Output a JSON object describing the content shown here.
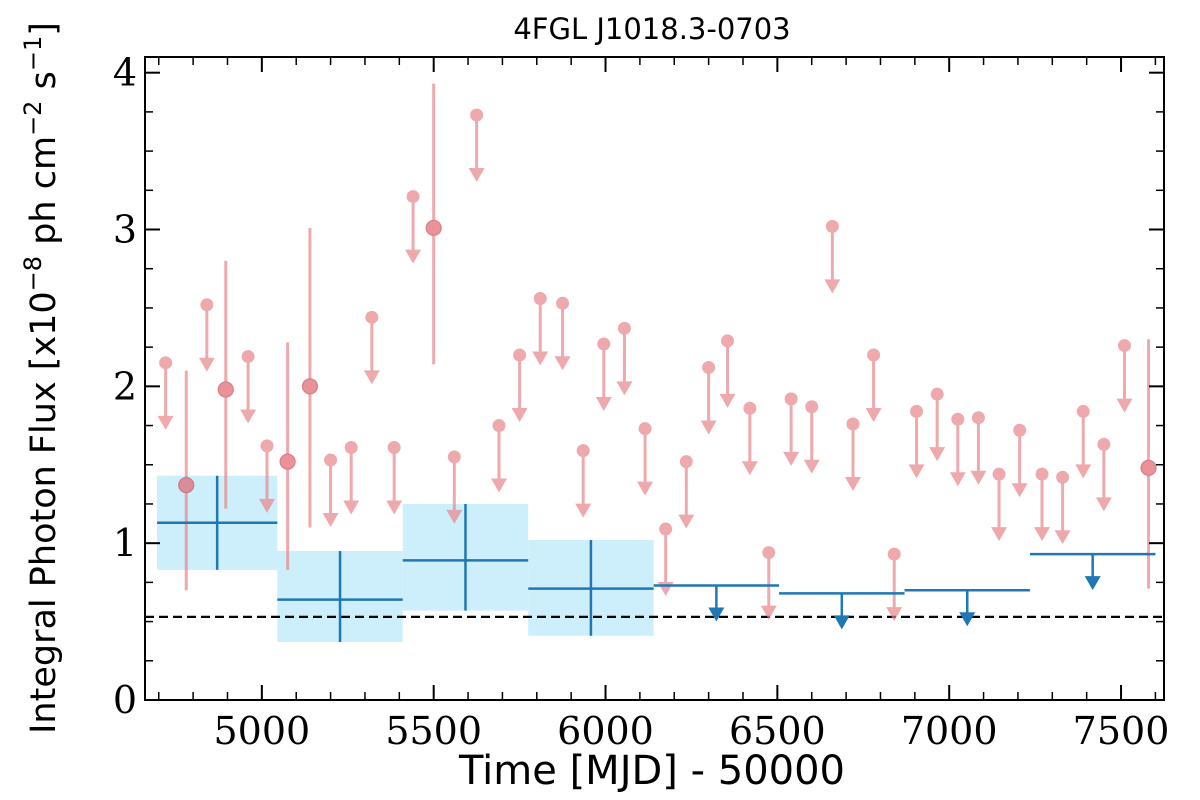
{
  "chart_data": {
    "type": "scatter",
    "title": "4FGL J1018.3-0703",
    "xlabel": "Time [MJD] - 50000",
    "ylabel": "Integral Photon Flux [x10^-8 ph cm^-2 s^-1]",
    "ylabel_parts": {
      "prefix": "Integral Photon Flux [x10",
      "exp1": "−8",
      "mid1": " ph cm",
      "exp2": "−2",
      "mid2": " s",
      "exp3": "−1",
      "suffix": "]"
    },
    "xlim": [
      4660,
      7625
    ],
    "ylim": [
      0,
      4.1
    ],
    "xticks": [
      5000,
      5500,
      6000,
      6500,
      7000,
      7500
    ],
    "xtick_labels": [
      "5000",
      "5500",
      "6000",
      "6500",
      "7000",
      "7500"
    ],
    "yticks": [
      0,
      1,
      2,
      3,
      4
    ],
    "ytick_labels": [
      "0",
      "1",
      "2",
      "3",
      "4"
    ],
    "grid": false,
    "reference_line": {
      "y": 0.53,
      "style": "dashed",
      "color": "#000000"
    },
    "colors": {
      "short_bin": "#e8868b",
      "long_bin": "#1f77b4",
      "long_bin_box": "#cdeefb"
    },
    "short_bins_detections": [
      {
        "x": 4780,
        "y": 1.37,
        "ylo": 0.7,
        "yhi": 2.1
      },
      {
        "x": 4895,
        "y": 1.98,
        "ylo": 1.22,
        "yhi": 2.8
      },
      {
        "x": 5075,
        "y": 1.52,
        "ylo": 0.83,
        "yhi": 2.28
      },
      {
        "x": 5140,
        "y": 2.0,
        "ylo": 1.1,
        "yhi": 3.01
      },
      {
        "x": 5500,
        "y": 3.01,
        "ylo": 2.14,
        "yhi": 3.93
      },
      {
        "x": 7580,
        "y": 1.48,
        "ylo": 0.71,
        "yhi": 2.3
      }
    ],
    "short_bins_upper_limits": [
      {
        "x": 4720,
        "y": 2.15
      },
      {
        "x": 4840,
        "y": 2.52
      },
      {
        "x": 4960,
        "y": 2.19
      },
      {
        "x": 5015,
        "y": 1.62
      },
      {
        "x": 5200,
        "y": 1.53
      },
      {
        "x": 5260,
        "y": 1.61
      },
      {
        "x": 5320,
        "y": 2.44
      },
      {
        "x": 5385,
        "y": 1.61
      },
      {
        "x": 5440,
        "y": 3.21
      },
      {
        "x": 5560,
        "y": 1.55
      },
      {
        "x": 5625,
        "y": 3.73
      },
      {
        "x": 5690,
        "y": 1.75
      },
      {
        "x": 5750,
        "y": 2.2
      },
      {
        "x": 5810,
        "y": 2.56
      },
      {
        "x": 5875,
        "y": 2.53
      },
      {
        "x": 5935,
        "y": 1.59
      },
      {
        "x": 5995,
        "y": 2.27
      },
      {
        "x": 6055,
        "y": 2.37
      },
      {
        "x": 6115,
        "y": 1.73
      },
      {
        "x": 6175,
        "y": 1.09
      },
      {
        "x": 6235,
        "y": 1.52
      },
      {
        "x": 6300,
        "y": 2.12
      },
      {
        "x": 6355,
        "y": 2.29
      },
      {
        "x": 6420,
        "y": 1.86
      },
      {
        "x": 6475,
        "y": 0.94
      },
      {
        "x": 6540,
        "y": 1.92
      },
      {
        "x": 6600,
        "y": 1.87
      },
      {
        "x": 6660,
        "y": 3.02
      },
      {
        "x": 6720,
        "y": 1.76
      },
      {
        "x": 6780,
        "y": 2.2
      },
      {
        "x": 6840,
        "y": 0.93
      },
      {
        "x": 6905,
        "y": 1.84
      },
      {
        "x": 6965,
        "y": 1.95
      },
      {
        "x": 7025,
        "y": 1.79
      },
      {
        "x": 7085,
        "y": 1.8
      },
      {
        "x": 7145,
        "y": 1.44
      },
      {
        "x": 7205,
        "y": 1.72
      },
      {
        "x": 7270,
        "y": 1.44
      },
      {
        "x": 7330,
        "y": 1.42
      },
      {
        "x": 7390,
        "y": 1.84
      },
      {
        "x": 7450,
        "y": 1.63
      },
      {
        "x": 7510,
        "y": 2.26
      }
    ],
    "long_bins_detections": [
      {
        "x0": 4695,
        "x1": 5045,
        "y": 1.13,
        "ylo": 0.83,
        "yhi": 1.43
      },
      {
        "x0": 5045,
        "x1": 5410,
        "y": 0.64,
        "ylo": 0.37,
        "yhi": 0.95
      },
      {
        "x0": 5410,
        "x1": 5775,
        "y": 0.89,
        "ylo": 0.57,
        "yhi": 1.25
      },
      {
        "x0": 5775,
        "x1": 6140,
        "y": 0.71,
        "ylo": 0.41,
        "yhi": 1.02
      }
    ],
    "long_bins_upper_limits": [
      {
        "x0": 6140,
        "x1": 6505,
        "y": 0.73
      },
      {
        "x0": 6505,
        "x1": 6870,
        "y": 0.68
      },
      {
        "x0": 6870,
        "x1": 7235,
        "y": 0.7
      },
      {
        "x0": 7235,
        "x1": 7600,
        "y": 0.93
      }
    ]
  }
}
